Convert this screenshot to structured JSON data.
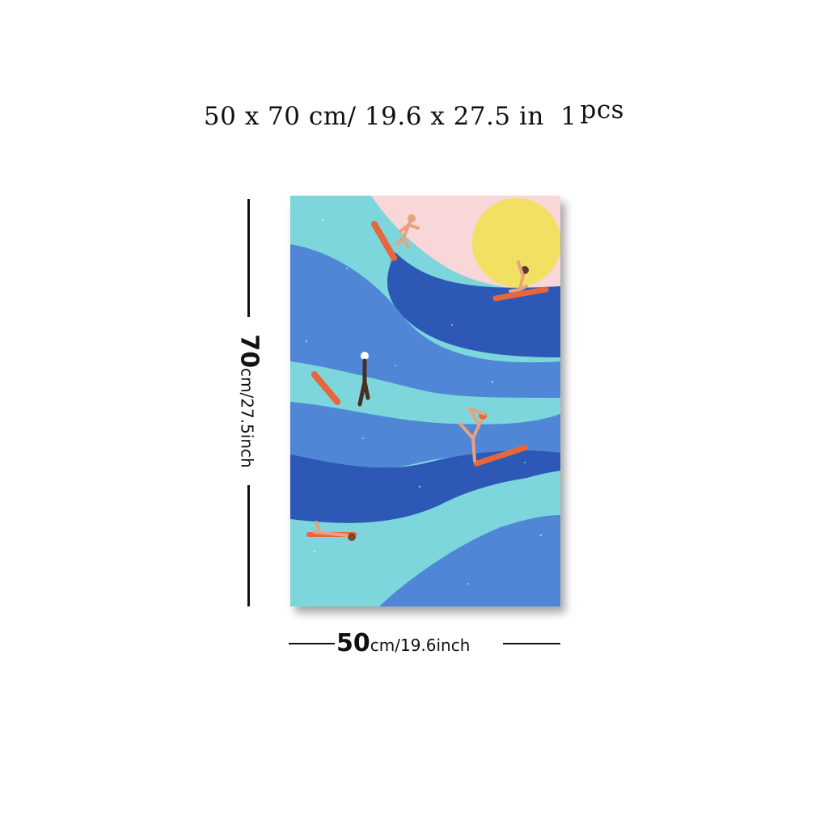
{
  "headline": {
    "size_text": "50 x 70 cm/ 19.6 x 27.5 in",
    "quantity_number": "1",
    "quantity_unit": "pcs"
  },
  "height_dimension": {
    "value": "70",
    "unit_text": "cm/27.5inch"
  },
  "width_dimension": {
    "value": "50",
    "unit_text": "cm/19.6inch"
  },
  "artwork": {
    "subject": "surfers-on-waves",
    "colors": {
      "sky_pink": "#f9d6d8",
      "sun_yellow": "#f2e063",
      "aqua": "#7cd6db",
      "mid_blue": "#4f86d6",
      "deep_blue": "#2e58b5",
      "skin": "#e7a27f",
      "board": "#e8663b"
    }
  }
}
